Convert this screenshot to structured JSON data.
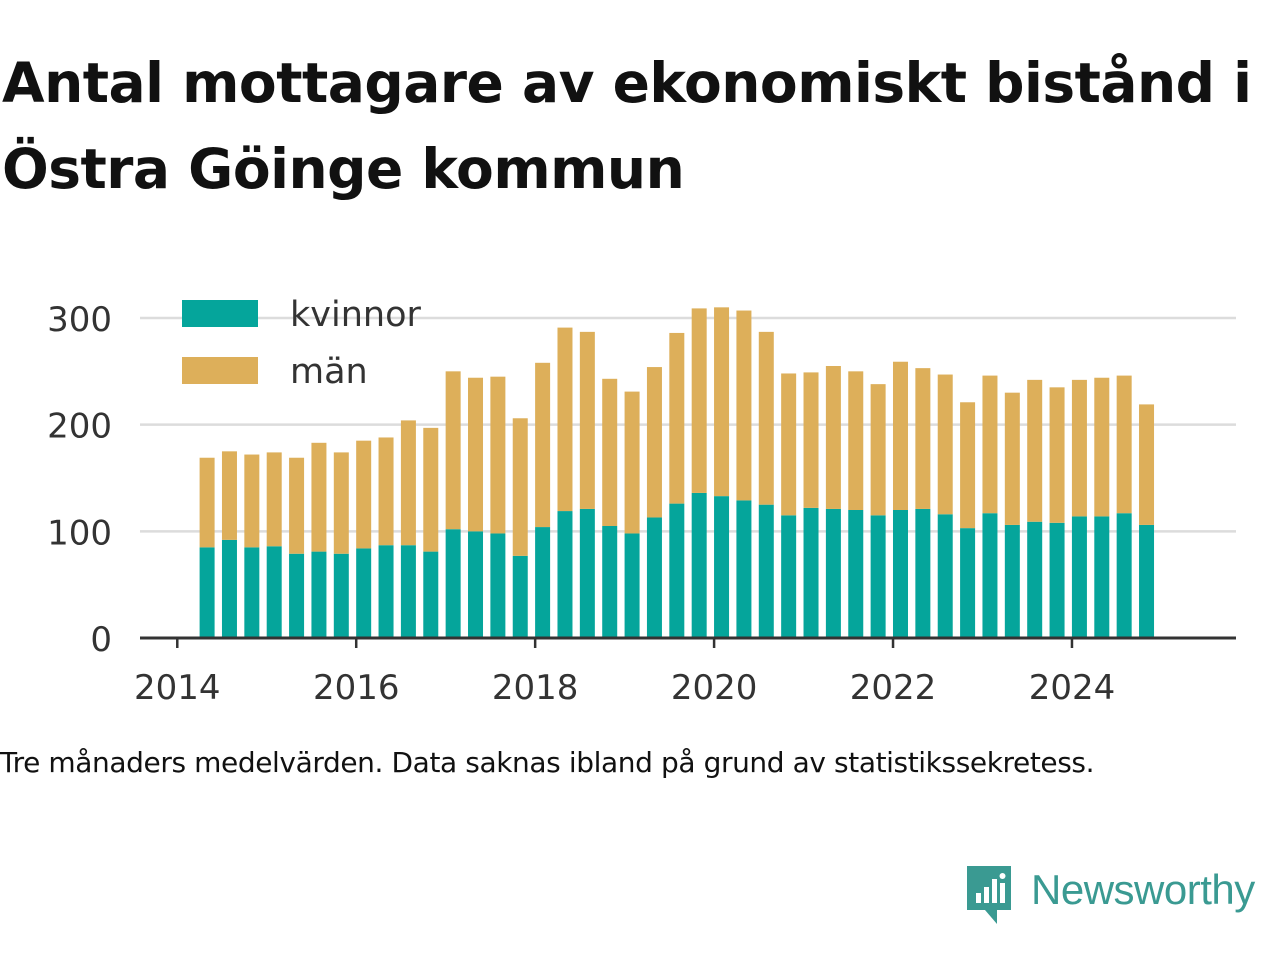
{
  "title": "Antal mottagare av ekonomiskt bistånd i Östra Göinge kommun",
  "footnote": "Tre månaders medelvärden. Data saknas ibland på grund av statistikssekretess.",
  "brand": {
    "name": "Newsworthy",
    "color": "#3a9a92",
    "icon": "newsworthy-logo-icon"
  },
  "chart_data": {
    "type": "bar",
    "stacked": true,
    "x": [
      "2014-05",
      "2014-08",
      "2014-11",
      "2015-02",
      "2015-05",
      "2015-08",
      "2015-11",
      "2016-02",
      "2016-05",
      "2016-08",
      "2016-11",
      "2017-02",
      "2017-05",
      "2017-08",
      "2017-11",
      "2018-02",
      "2018-05",
      "2018-08",
      "2018-11",
      "2019-02",
      "2019-05",
      "2019-08",
      "2019-11",
      "2020-02",
      "2020-05",
      "2020-08",
      "2020-11",
      "2021-02",
      "2021-05",
      "2021-08",
      "2021-11",
      "2022-02",
      "2022-05",
      "2022-08",
      "2022-11",
      "2023-02",
      "2023-05",
      "2023-08",
      "2023-11",
      "2024-02",
      "2024-05",
      "2024-08",
      "2024-11"
    ],
    "series": [
      {
        "name": "kvinnor",
        "color": "#05a59b",
        "values": [
          85,
          92,
          85,
          86,
          79,
          81,
          79,
          84,
          87,
          87,
          81,
          102,
          100,
          98,
          77,
          104,
          119,
          121,
          105,
          98,
          113,
          126,
          136,
          133,
          129,
          125,
          115,
          122,
          121,
          120,
          115,
          120,
          121,
          116,
          103,
          117,
          106,
          109,
          108,
          114,
          114,
          117,
          106
        ]
      },
      {
        "name": "män",
        "color": "#ddaf5a",
        "values": [
          84,
          83,
          87,
          88,
          90,
          102,
          95,
          101,
          101,
          117,
          116,
          148,
          144,
          147,
          129,
          154,
          172,
          166,
          138,
          133,
          141,
          160,
          173,
          177,
          178,
          162,
          133,
          127,
          134,
          130,
          123,
          139,
          132,
          131,
          118,
          129,
          124,
          133,
          127,
          128,
          130,
          129,
          113
        ]
      }
    ],
    "xticks": [
      "2014",
      "2016",
      "2018",
      "2020",
      "2022",
      "2024"
    ],
    "yticks": [
      0,
      100,
      200,
      300
    ],
    "ylim": [
      0,
      320
    ],
    "xlim": [
      "2013-08",
      "2025-11"
    ],
    "grid": true,
    "legend": "top-left"
  }
}
